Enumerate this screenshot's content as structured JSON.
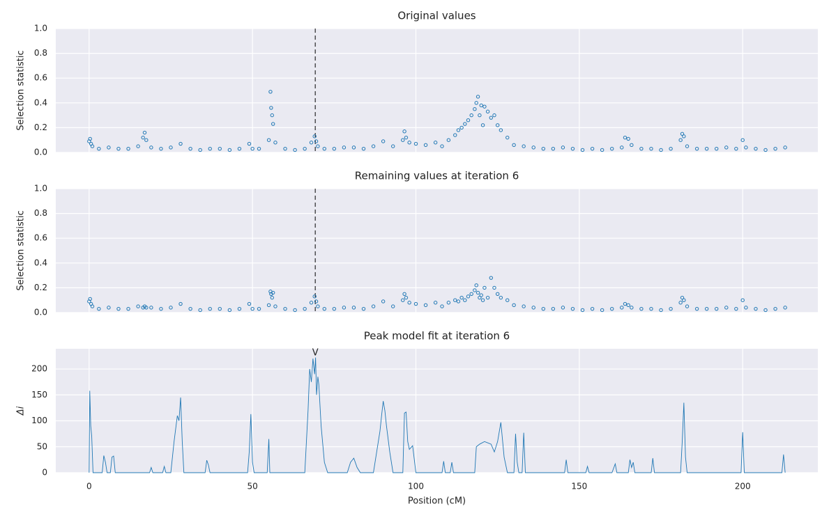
{
  "chart_data": [
    {
      "type": "scatter",
      "title": "Original values",
      "ylabel": "Selection statistic",
      "color": "#1f77b4",
      "grid": true,
      "xlim": [
        -10.2,
        223
      ],
      "xticks": [
        0,
        50,
        100,
        150,
        200
      ],
      "ylim": [
        0,
        1
      ],
      "yticks": [
        {
          "value": 0,
          "label": "0.0"
        },
        0.2,
        0.4,
        0.6,
        0.8,
        {
          "value": 1,
          "label": "1.0"
        }
      ],
      "vline": 69.2,
      "x": [
        0,
        0.3,
        0.6,
        1,
        3,
        6,
        9,
        12,
        15,
        16.5,
        17,
        17.5,
        19,
        22,
        25,
        28,
        31,
        34,
        37,
        40,
        43,
        46,
        49,
        50,
        52,
        55,
        55.5,
        55.7,
        56,
        56.3,
        57,
        60,
        63,
        66,
        68,
        69,
        69.5,
        70,
        72,
        75,
        78,
        81,
        84,
        87,
        90,
        93,
        96,
        96.5,
        97,
        98,
        100,
        103,
        106,
        108,
        110,
        112,
        113,
        114,
        115,
        116,
        117,
        118,
        118.5,
        119,
        119.5,
        120,
        120.5,
        121,
        122,
        123,
        124,
        125,
        126,
        128,
        130,
        133,
        136,
        139,
        142,
        145,
        148,
        151,
        154,
        157,
        160,
        163,
        164,
        165,
        166,
        169,
        172,
        175,
        178,
        181,
        181.5,
        182,
        183,
        186,
        189,
        192,
        195,
        198,
        200,
        201,
        204,
        207,
        210,
        213
      ],
      "values": [
        0.09,
        0.11,
        0.07,
        0.05,
        0.03,
        0.04,
        0.03,
        0.03,
        0.05,
        0.12,
        0.16,
        0.1,
        0.04,
        0.03,
        0.04,
        0.07,
        0.03,
        0.02,
        0.03,
        0.03,
        0.02,
        0.03,
        0.07,
        0.03,
        0.03,
        0.1,
        0.49,
        0.36,
        0.3,
        0.23,
        0.08,
        0.03,
        0.02,
        0.03,
        0.08,
        0.13,
        0.09,
        0.05,
        0.03,
        0.03,
        0.04,
        0.04,
        0.03,
        0.05,
        0.09,
        0.05,
        0.1,
        0.17,
        0.12,
        0.08,
        0.07,
        0.06,
        0.08,
        0.05,
        0.1,
        0.14,
        0.18,
        0.2,
        0.23,
        0.26,
        0.3,
        0.35,
        0.4,
        0.45,
        0.3,
        0.38,
        0.22,
        0.37,
        0.33,
        0.28,
        0.3,
        0.22,
        0.18,
        0.12,
        0.06,
        0.05,
        0.04,
        0.03,
        0.03,
        0.04,
        0.03,
        0.02,
        0.03,
        0.02,
        0.03,
        0.04,
        0.12,
        0.11,
        0.06,
        0.03,
        0.03,
        0.02,
        0.03,
        0.1,
        0.15,
        0.13,
        0.05,
        0.03,
        0.03,
        0.03,
        0.04,
        0.03,
        0.1,
        0.04,
        0.03,
        0.02,
        0.03,
        0.04
      ]
    },
    {
      "type": "scatter",
      "title": "Remaining values at iteration 6",
      "ylabel": "Selection statistic",
      "color": "#1f77b4",
      "grid": true,
      "xlim": [
        -10.2,
        223
      ],
      "xticks": [
        0,
        50,
        100,
        150,
        200
      ],
      "ylim": [
        0,
        1
      ],
      "yticks": [
        {
          "value": 0,
          "label": "0.0"
        },
        0.2,
        0.4,
        0.6,
        0.8,
        {
          "value": 1,
          "label": "1.0"
        }
      ],
      "vline": 69.2,
      "x": [
        0,
        0.3,
        0.6,
        1,
        3,
        6,
        9,
        12,
        15,
        16.5,
        17,
        17.5,
        19,
        22,
        25,
        28,
        31,
        34,
        37,
        40,
        43,
        46,
        49,
        50,
        52,
        55,
        55.5,
        55.7,
        56,
        56.3,
        57,
        60,
        63,
        66,
        68,
        69,
        69.5,
        70,
        72,
        75,
        78,
        81,
        84,
        87,
        90,
        93,
        96,
        96.5,
        97,
        98,
        100,
        103,
        106,
        108,
        110,
        112,
        113,
        114,
        115,
        116,
        117,
        118,
        118.5,
        119,
        119.5,
        120,
        120.5,
        121,
        122,
        123,
        124,
        125,
        126,
        128,
        130,
        133,
        136,
        139,
        142,
        145,
        148,
        151,
        154,
        157,
        160,
        163,
        164,
        165,
        166,
        169,
        172,
        175,
        178,
        181,
        181.5,
        182,
        183,
        186,
        189,
        192,
        195,
        198,
        200,
        201,
        204,
        207,
        210,
        213
      ],
      "values": [
        0.09,
        0.11,
        0.07,
        0.05,
        0.03,
        0.04,
        0.03,
        0.03,
        0.05,
        0.04,
        0.05,
        0.04,
        0.04,
        0.03,
        0.04,
        0.07,
        0.03,
        0.02,
        0.03,
        0.03,
        0.02,
        0.03,
        0.07,
        0.03,
        0.03,
        0.06,
        0.17,
        0.15,
        0.12,
        0.16,
        0.05,
        0.03,
        0.02,
        0.03,
        0.08,
        0.13,
        0.09,
        0.05,
        0.03,
        0.03,
        0.04,
        0.04,
        0.03,
        0.05,
        0.09,
        0.05,
        0.1,
        0.15,
        0.12,
        0.08,
        0.07,
        0.06,
        0.08,
        0.05,
        0.08,
        0.1,
        0.09,
        0.12,
        0.1,
        0.13,
        0.15,
        0.18,
        0.22,
        0.16,
        0.12,
        0.14,
        0.1,
        0.2,
        0.12,
        0.28,
        0.2,
        0.15,
        0.12,
        0.1,
        0.06,
        0.05,
        0.04,
        0.03,
        0.03,
        0.04,
        0.03,
        0.02,
        0.03,
        0.02,
        0.03,
        0.04,
        0.07,
        0.06,
        0.04,
        0.03,
        0.03,
        0.02,
        0.03,
        0.08,
        0.12,
        0.1,
        0.05,
        0.03,
        0.03,
        0.03,
        0.04,
        0.03,
        0.1,
        0.04,
        0.03,
        0.02,
        0.03,
        0.04
      ]
    },
    {
      "type": "line",
      "title": "Peak model fit at iteration 6",
      "ylabel": "Δi",
      "xlabel": "Position (cM)",
      "color": "#1f77b4",
      "grid": true,
      "xlim": [
        -10.2,
        223
      ],
      "xticks": [
        0,
        50,
        100,
        150,
        200
      ],
      "ylim": [
        0,
        239
      ],
      "yticks": [
        0,
        50,
        100,
        150,
        200
      ],
      "annotation": {
        "text": "V",
        "x": 69.2
      },
      "x": [
        0,
        0.2,
        0.5,
        0.8,
        1.2,
        4,
        4.5,
        5,
        5.5,
        6.5,
        7,
        7.5,
        8,
        18.5,
        19,
        19.5,
        22.5,
        23,
        23.5,
        25,
        26,
        27,
        27.5,
        28,
        28.5,
        29,
        35.5,
        36,
        36.5,
        37,
        48.5,
        49,
        49.5,
        50,
        50.5,
        54.5,
        55,
        55.3,
        66,
        67,
        67.5,
        68,
        68.5,
        69,
        69.3,
        69.6,
        70,
        70.3,
        71,
        72,
        73,
        79,
        80,
        81,
        82,
        83,
        87,
        88,
        89,
        89.5,
        90,
        90.5,
        91,
        92,
        93,
        96,
        96.5,
        97,
        97.5,
        98,
        99,
        100,
        108,
        108.5,
        109,
        110.5,
        111,
        111.5,
        118,
        118.5,
        119.5,
        121,
        123,
        124,
        125,
        126,
        127,
        128,
        130,
        130.5,
        131,
        131.5,
        132.5,
        133,
        133.5,
        145.5,
        146,
        146.5,
        152,
        152.5,
        153,
        160,
        161,
        161.5,
        165,
        165.5,
        166,
        166.5,
        167,
        172,
        172.5,
        173,
        181,
        181.5,
        182,
        182.5,
        183,
        199.5,
        200,
        200.5,
        212,
        212.5,
        213
      ],
      "values": [
        0,
        158,
        90,
        70,
        0,
        0,
        33,
        20,
        0,
        0,
        30,
        32,
        0,
        0,
        10,
        0,
        0,
        12,
        0,
        0,
        60,
        110,
        100,
        145,
        60,
        0,
        0,
        24,
        15,
        0,
        0,
        40,
        113,
        20,
        0,
        0,
        65,
        0,
        0,
        120,
        200,
        175,
        220,
        190,
        222,
        150,
        185,
        170,
        90,
        20,
        0,
        0,
        20,
        28,
        10,
        0,
        0,
        40,
        80,
        110,
        138,
        120,
        90,
        40,
        0,
        0,
        115,
        117,
        60,
        45,
        52,
        0,
        0,
        22,
        0,
        0,
        20,
        0,
        0,
        50,
        55,
        60,
        55,
        40,
        60,
        97,
        30,
        0,
        0,
        75,
        20,
        0,
        0,
        77,
        0,
        0,
        25,
        0,
        0,
        12,
        0,
        0,
        17,
        0,
        0,
        25,
        10,
        20,
        0,
        0,
        28,
        0,
        0,
        60,
        135,
        30,
        0,
        0,
        78,
        0,
        0,
        35,
        0
      ]
    }
  ]
}
